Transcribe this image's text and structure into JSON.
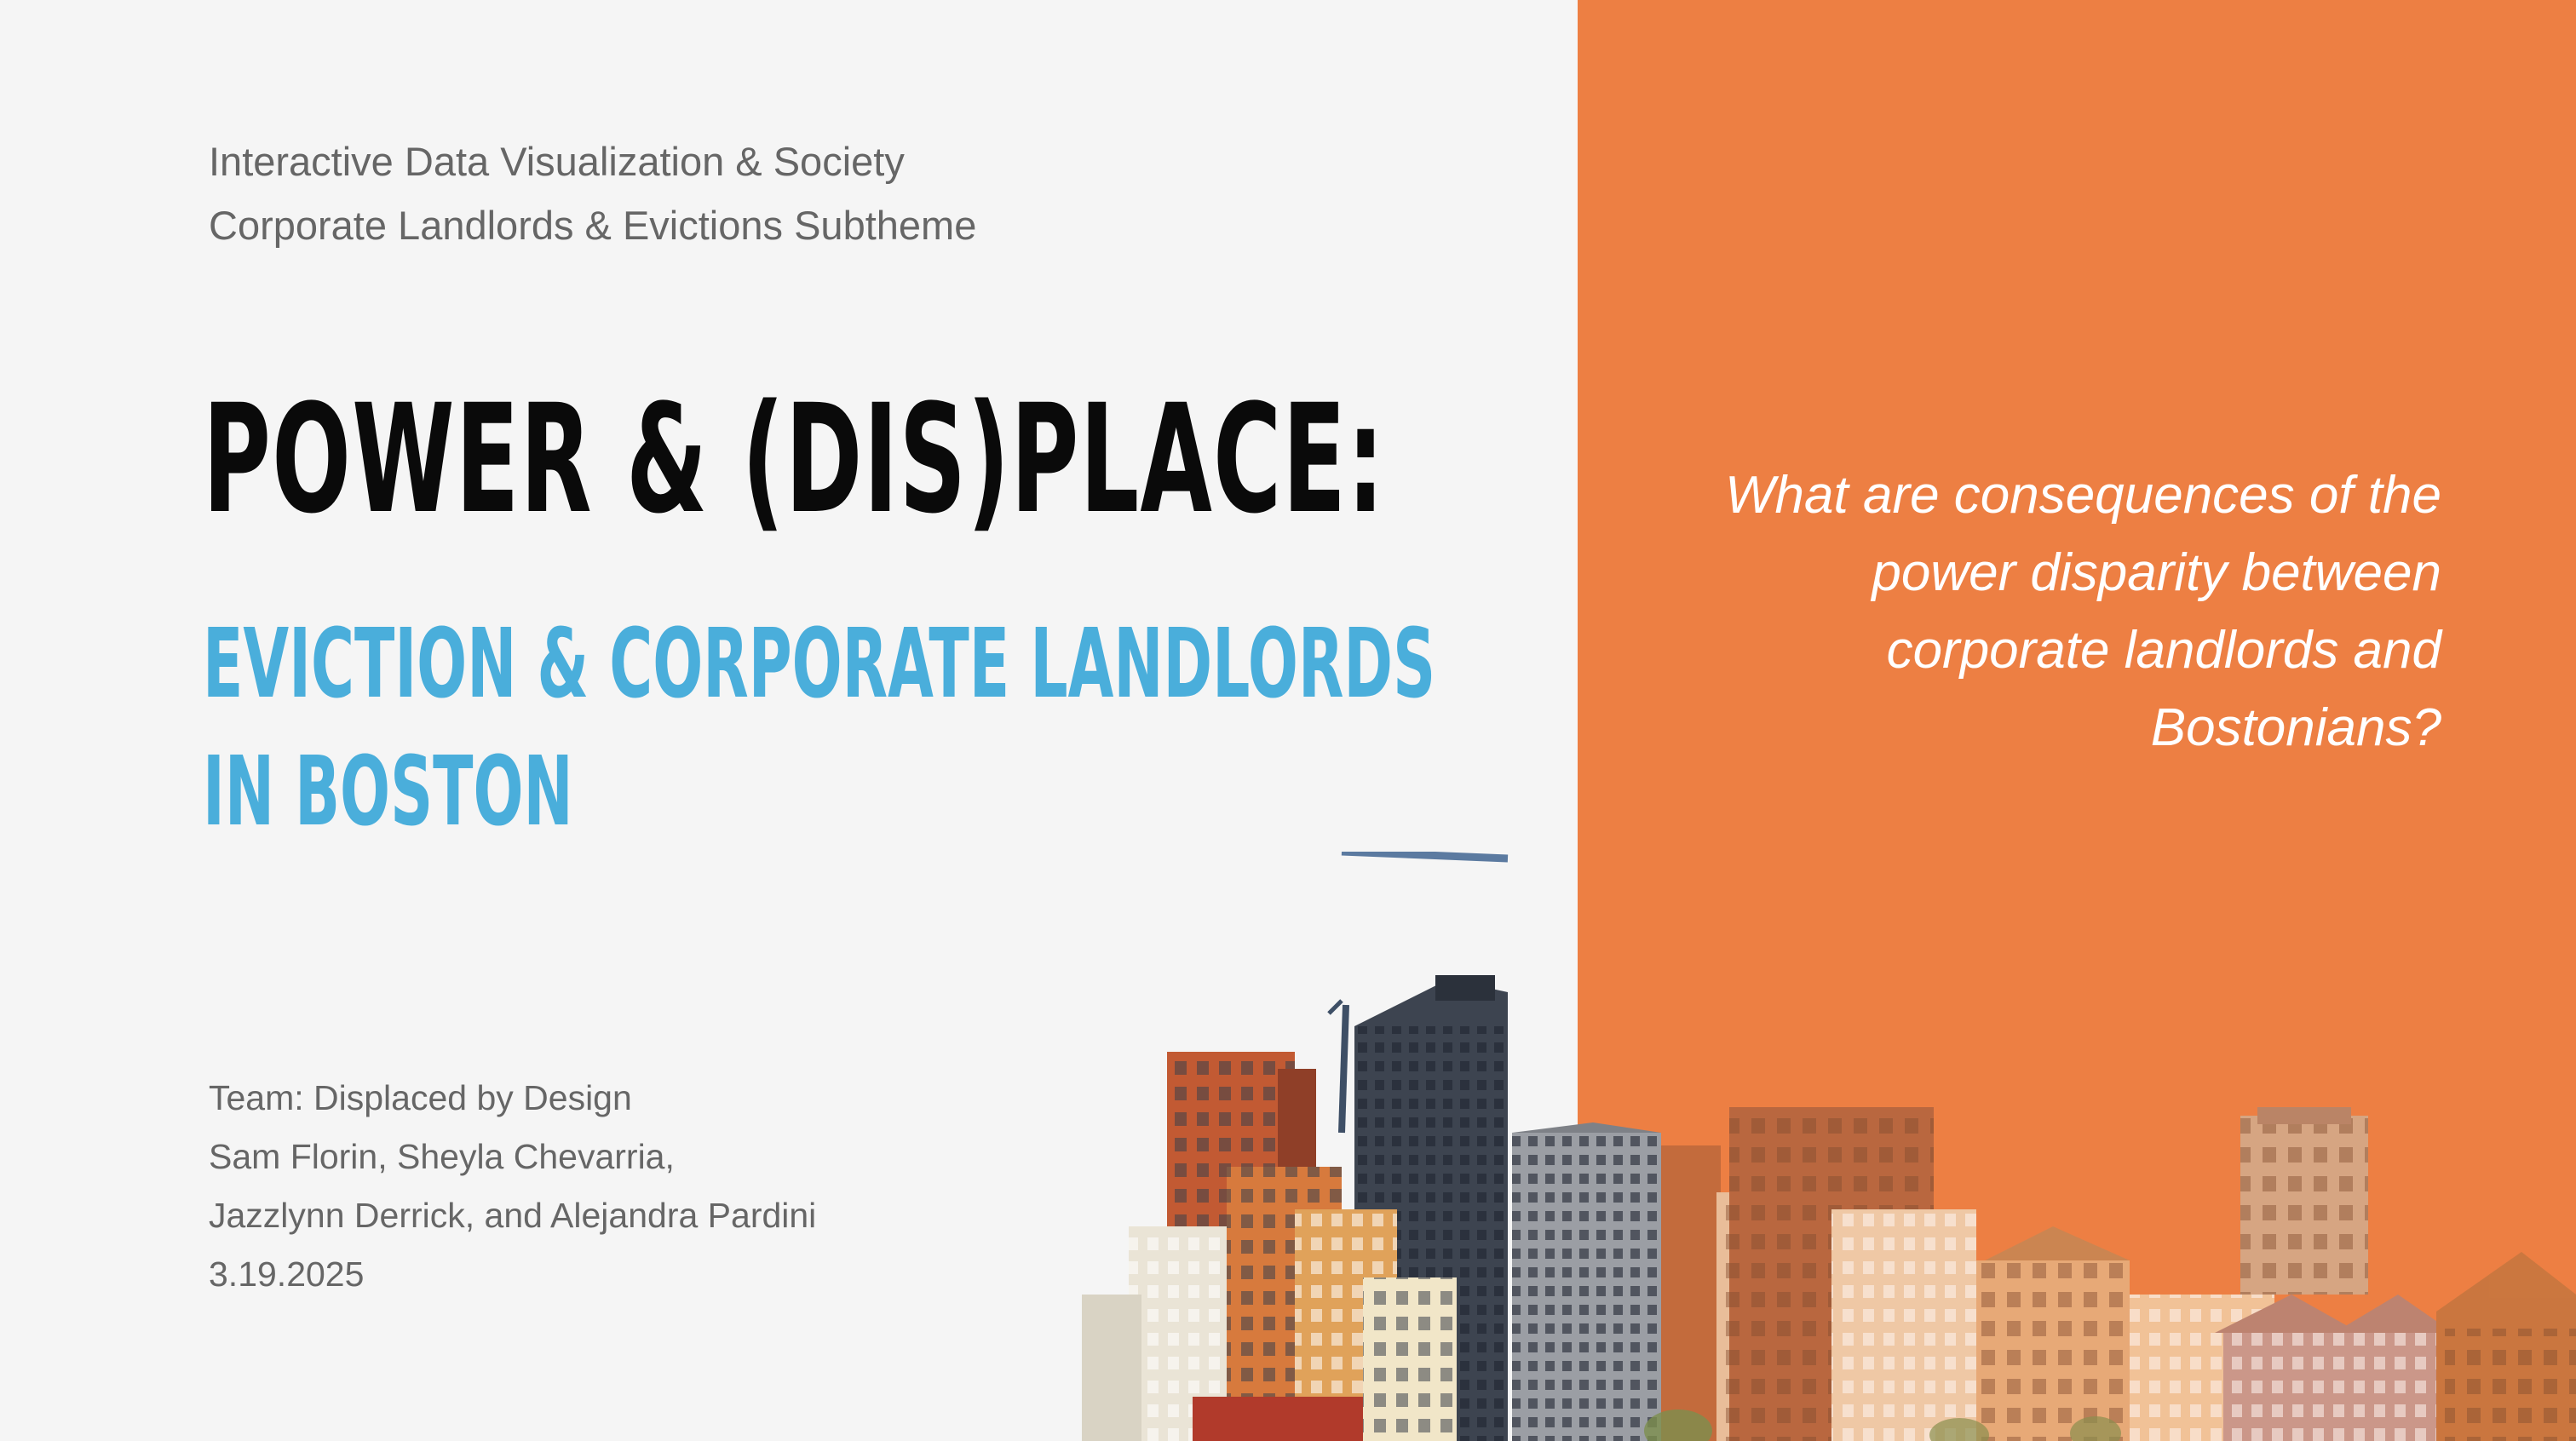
{
  "course": {
    "line1": "Interactive Data Visualization & Society",
    "line2": "Corporate Landlords & Evictions Subtheme"
  },
  "title": {
    "main": "POWER & (DIS)PLACE:",
    "subtitle_line1": "EVICTION & CORPORATE LANDLORDS",
    "subtitle_line2": "IN BOSTON"
  },
  "team": {
    "name": "Team: Displaced by Design",
    "members_line1": "Sam Florin, Sheyla Chevarria,",
    "members_line2": "Jazzlynn Derrick, and Alejandra Pardini",
    "date": "3.19.2025"
  },
  "question": {
    "line1": "What are consequences of the",
    "line2": "power disparity between",
    "line3": "corporate landlords and",
    "line4": "Bostonians?"
  },
  "colors": {
    "background": "#f5f5f5",
    "accent": "#ed7f43",
    "title": "#0a0a0a",
    "subtitle": "#4aaedb",
    "body_text": "#666666"
  },
  "image": {
    "name": "city-skyline-collage"
  }
}
